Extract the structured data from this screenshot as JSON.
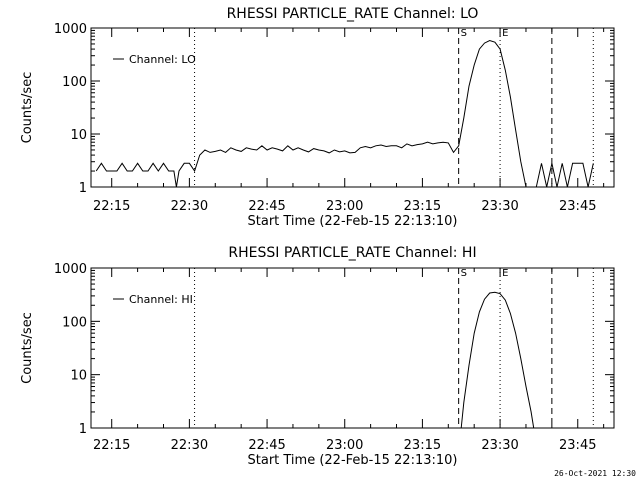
{
  "footer_timestamp": "26-Oct-2021 12:30",
  "chart_data": [
    {
      "type": "line",
      "title": "RHESSI PARTICLE_RATE Channel: LO",
      "xlabel": "Start Time (22-Feb-15 22:13:10)",
      "ylabel": "Counts/sec",
      "legend": "Channel: LO",
      "legend_placement": "top-left",
      "y_scale": "log",
      "ylim": [
        1,
        1000
      ],
      "yticks": [
        "1",
        "10",
        "100",
        "1000"
      ],
      "xlim": [
        "22:11:00",
        "23:52:00"
      ],
      "xticks": [
        "22:15",
        "22:30",
        "22:45",
        "23:00",
        "23:15",
        "23:30",
        "23:45"
      ],
      "markers": [
        {
          "time": "22:31:00",
          "style": "dotted",
          "label": ""
        },
        {
          "time": "23:22:00",
          "style": "dashed",
          "label": "S"
        },
        {
          "time": "23:30:00",
          "style": "dotted",
          "label": "E"
        },
        {
          "time": "23:40:00",
          "style": "dashed",
          "label": ""
        },
        {
          "time": "23:48:00",
          "style": "dotted",
          "label": ""
        }
      ],
      "series": [
        {
          "name": "Channel: LO",
          "x": [
            "22:12:00",
            "22:13:00",
            "22:14:00",
            "22:15:00",
            "22:16:00",
            "22:17:00",
            "22:18:00",
            "22:19:00",
            "22:20:00",
            "22:21:00",
            "22:22:00",
            "22:23:00",
            "22:24:00",
            "22:25:00",
            "22:26:00",
            "22:27:00",
            "22:27:30",
            "22:28:00",
            "22:29:00",
            "22:30:00",
            "22:31:00",
            "22:32:00",
            "22:33:00",
            "22:34:00",
            "22:35:00",
            "22:36:00",
            "22:37:00",
            "22:38:00",
            "22:39:00",
            "22:40:00",
            "22:41:00",
            "22:42:00",
            "22:43:00",
            "22:44:00",
            "22:45:00",
            "22:46:00",
            "22:47:00",
            "22:48:00",
            "22:49:00",
            "22:50:00",
            "22:51:00",
            "22:52:00",
            "22:53:00",
            "22:54:00",
            "22:55:00",
            "22:56:00",
            "22:57:00",
            "22:58:00",
            "22:59:00",
            "23:00:00",
            "23:01:00",
            "23:02:00",
            "23:03:00",
            "23:04:00",
            "23:05:00",
            "23:06:00",
            "23:07:00",
            "23:08:00",
            "23:09:00",
            "23:10:00",
            "23:11:00",
            "23:12:00",
            "23:13:00",
            "23:14:00",
            "23:15:00",
            "23:16:00",
            "23:17:00",
            "23:18:00",
            "23:19:00",
            "23:20:00",
            "23:21:00",
            "23:22:00",
            "23:23:00",
            "23:24:00",
            "23:25:00",
            "23:26:00",
            "23:27:00",
            "23:28:00",
            "23:29:00",
            "23:30:00",
            "23:31:00",
            "23:32:00",
            "23:33:00",
            "23:34:00",
            "23:35:00",
            "23:36:00",
            "23:37:00",
            "23:38:00",
            "23:39:00",
            "23:40:00",
            "23:41:00",
            "23:42:00",
            "23:43:00",
            "23:44:00",
            "23:45:00",
            "23:46:00",
            "23:47:00",
            "23:48:00"
          ],
          "y": [
            2,
            2.8,
            2,
            2,
            2,
            2.8,
            2,
            2,
            2.8,
            2,
            2,
            2.8,
            2,
            2.8,
            2,
            2,
            1,
            2,
            2.8,
            2.8,
            2,
            4,
            5,
            4.5,
            4.7,
            5,
            4.5,
            5.5,
            5,
            4.7,
            5.5,
            5.2,
            5,
            6,
            5,
            5.5,
            5.2,
            4.8,
            6,
            5,
            5.5,
            5,
            4.6,
            5.3,
            5,
            4.8,
            4.4,
            5,
            4.6,
            4.8,
            4.4,
            4.5,
            5.5,
            5.8,
            5.5,
            6,
            6.2,
            5.8,
            6,
            6,
            5.5,
            6.5,
            6,
            6.3,
            6.5,
            7,
            6.5,
            6.8,
            7,
            6.8,
            4.5,
            6,
            20,
            80,
            200,
            400,
            520,
            580,
            540,
            400,
            160,
            50,
            12,
            3,
            1,
            1,
            1,
            2.8,
            1,
            2.8,
            1,
            2.8,
            1,
            2.8,
            2.8,
            2.8,
            1,
            2.8
          ]
        }
      ]
    },
    {
      "type": "line",
      "title": "RHESSI PARTICLE_RATE Channel: HI",
      "xlabel": "Start Time (22-Feb-15 22:13:10)",
      "ylabel": "Counts/sec",
      "legend": "Channel: HI",
      "legend_placement": "top-left",
      "y_scale": "log",
      "ylim": [
        1,
        1000
      ],
      "yticks": [
        "1",
        "10",
        "100",
        "1000"
      ],
      "xlim": [
        "22:11:00",
        "23:52:00"
      ],
      "xticks": [
        "22:15",
        "22:30",
        "22:45",
        "23:00",
        "23:15",
        "23:30",
        "23:45"
      ],
      "markers": [
        {
          "time": "22:31:00",
          "style": "dotted",
          "label": ""
        },
        {
          "time": "23:22:00",
          "style": "dashed",
          "label": "S"
        },
        {
          "time": "23:30:00",
          "style": "dotted",
          "label": "E"
        },
        {
          "time": "23:40:00",
          "style": "dashed",
          "label": ""
        },
        {
          "time": "23:48:00",
          "style": "dotted",
          "label": ""
        }
      ],
      "series": [
        {
          "name": "Channel: HI",
          "x": [
            "23:22:30",
            "23:23:00",
            "23:24:00",
            "23:25:00",
            "23:26:00",
            "23:27:00",
            "23:28:00",
            "23:29:00",
            "23:30:00",
            "23:31:00",
            "23:32:00",
            "23:33:00",
            "23:34:00",
            "23:35:00",
            "23:36:00",
            "23:36:30"
          ],
          "y": [
            1,
            3,
            15,
            60,
            150,
            260,
            340,
            350,
            330,
            250,
            140,
            60,
            20,
            6,
            2,
            1
          ]
        }
      ]
    }
  ]
}
